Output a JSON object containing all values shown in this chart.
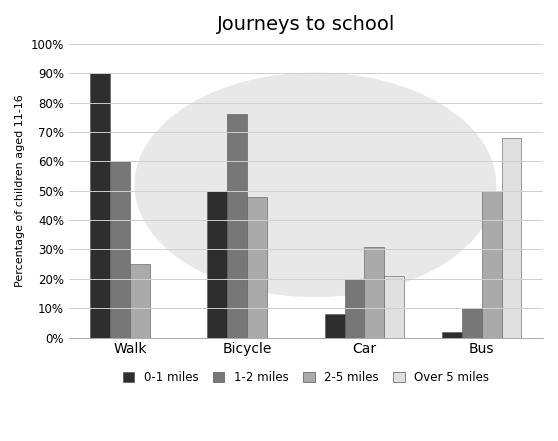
{
  "title": "Journeys to school",
  "ylabel": "Percentage of children aged 11-16",
  "categories": [
    "Walk",
    "Bicycle",
    "Car",
    "Bus"
  ],
  "series": {
    "0-1 miles": [
      90,
      50,
      8,
      2
    ],
    "1-2 miles": [
      60,
      76,
      20,
      10
    ],
    "2-5 miles": [
      25,
      48,
      31,
      50
    ],
    "Over 5 miles": [
      0,
      0,
      21,
      68
    ]
  },
  "colors": {
    "0-1 miles": "#2e2e2e",
    "1-2 miles": "#777777",
    "2-5 miles": "#aaaaaa",
    "Over 5 miles": "#e0e0e0"
  },
  "ylim": [
    0,
    100
  ],
  "yticks": [
    0,
    10,
    20,
    30,
    40,
    50,
    60,
    70,
    80,
    90,
    100
  ],
  "ytick_labels": [
    "0%",
    "10%",
    "20%",
    "30%",
    "40%",
    "50%",
    "60%",
    "70%",
    "80%",
    "90%",
    "100%"
  ],
  "bar_width": 0.17,
  "legend_labels": [
    "0-1 miles",
    "1-2 miles",
    "2-5 miles",
    "Over 5 miles"
  ],
  "background_color": "#ffffff",
  "watermark_fill": "#e8e8e8",
  "grid_color": "#d0d0d0",
  "title_fontsize": 14,
  "ylabel_fontsize": 8,
  "tick_fontsize": 8.5,
  "legend_fontsize": 8.5
}
